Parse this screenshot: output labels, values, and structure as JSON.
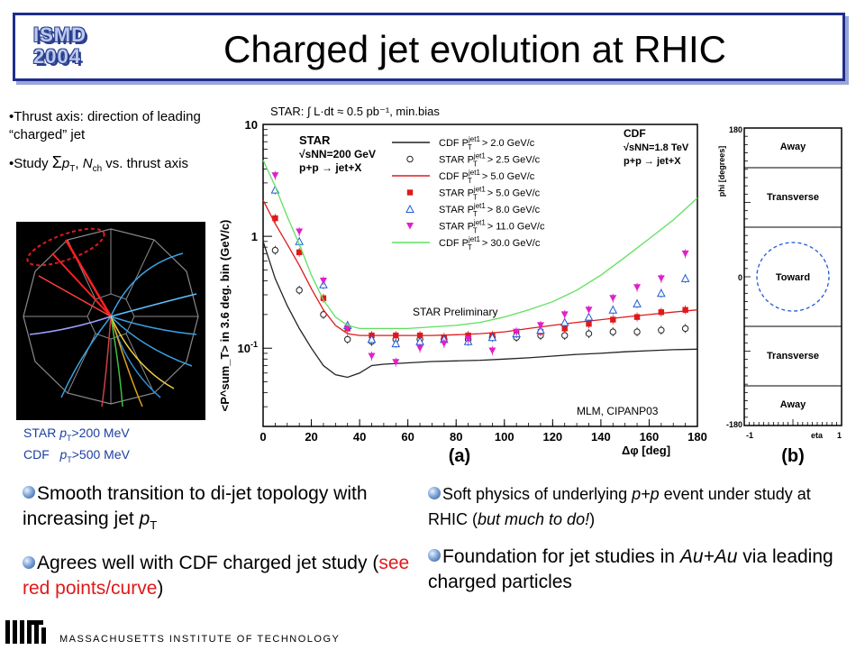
{
  "header": {
    "logo_line1": "ISMD",
    "logo_line2": "2004",
    "title": "Charged jet evolution at RHIC"
  },
  "left_bullets": {
    "b1": "•Thrust axis: direction of leading “charged” jet",
    "b2_pre": "•Study ",
    "b2_sum": "Σ",
    "b2_pt": "p",
    "b2_ptsub": "T",
    "b2_comma": ", ",
    "b2_n": "N",
    "b2_nsub": "ch",
    "b2_post": " vs. thrust axis"
  },
  "event_legend": {
    "line1_pre": "STAR ",
    "line1_p": "p",
    "line1_sub": "T",
    "line1_post": ">200 MeV",
    "line2_pre": "CDF   ",
    "line2_p": "p",
    "line2_sub": "T",
    "line2_post": ">500 MeV"
  },
  "chart_data": [
    {
      "type": "line",
      "panel_label": "(a)",
      "header_note": "STAR: ∫ L·dt ≈ 0.5 pb⁻¹, min.bias",
      "xlabel": "Δφ [deg]",
      "ylabel": "<P^sum_T> in 3.6 deg. bin (GeV/c)",
      "xlim": [
        0,
        180
      ],
      "ylim": [
        0.02,
        10
      ],
      "yscale": "log",
      "x_ticks": [
        0,
        20,
        40,
        60,
        80,
        100,
        120,
        140,
        160,
        180
      ],
      "y_tick_labels": [
        "10",
        "1",
        "10^-1"
      ],
      "annotation_star": [
        "STAR",
        "√sNN=200 GeV",
        "p+p → jet+X"
      ],
      "annotation_cdf": [
        "CDF",
        "√sNN=1.8 TeV",
        "p+p → jet+X"
      ],
      "annotation_prelim": "STAR Preliminary",
      "annotation_credit": "MLM, CIPANP03",
      "series": [
        {
          "name": "CDF P_T^jet1 > 2.0 GeV/c",
          "style": "line",
          "color": "#222222",
          "x": [
            0,
            5,
            10,
            15,
            20,
            25,
            30,
            35,
            40,
            45,
            50,
            60,
            70,
            80,
            90,
            100,
            110,
            120,
            130,
            140,
            150,
            160,
            170,
            180
          ],
          "y": [
            0.9,
            0.42,
            0.24,
            0.15,
            0.1,
            0.07,
            0.058,
            0.055,
            0.06,
            0.07,
            0.072,
            0.074,
            0.076,
            0.077,
            0.078,
            0.08,
            0.082,
            0.085,
            0.088,
            0.09,
            0.093,
            0.095,
            0.097,
            0.098
          ]
        },
        {
          "name": "STAR P_T^jet1 > 2.5 GeV/c",
          "style": "open-circle",
          "color": "#222222",
          "x": [
            5,
            15,
            25,
            35,
            45,
            55,
            65,
            75,
            85,
            95,
            105,
            115,
            125,
            135,
            145,
            155,
            165,
            175
          ],
          "y": [
            0.75,
            0.33,
            0.2,
            0.12,
            0.115,
            0.12,
            0.12,
            0.12,
            0.12,
            0.125,
            0.125,
            0.13,
            0.13,
            0.135,
            0.14,
            0.14,
            0.145,
            0.15
          ]
        },
        {
          "name": "CDF P_T^jet1 > 5.0 GeV/c",
          "style": "line",
          "color": "#e0191a",
          "x": [
            0,
            5,
            10,
            15,
            20,
            25,
            30,
            35,
            40,
            50,
            60,
            70,
            80,
            90,
            100,
            110,
            120,
            130,
            140,
            150,
            160,
            170,
            180
          ],
          "y": [
            2.1,
            1.3,
            0.85,
            0.55,
            0.34,
            0.22,
            0.16,
            0.135,
            0.13,
            0.13,
            0.13,
            0.13,
            0.132,
            0.135,
            0.14,
            0.15,
            0.16,
            0.17,
            0.18,
            0.19,
            0.2,
            0.21,
            0.22
          ]
        },
        {
          "name": "STAR P_T^jet1 > 5.0 GeV/c",
          "style": "filled-square",
          "color": "#e0191a",
          "x": [
            5,
            15,
            25,
            35,
            45,
            55,
            65,
            75,
            85,
            95,
            105,
            115,
            125,
            135,
            145,
            155,
            165,
            175
          ],
          "y": [
            1.45,
            0.72,
            0.28,
            0.15,
            0.13,
            0.13,
            0.13,
            0.125,
            0.13,
            0.13,
            0.135,
            0.14,
            0.15,
            0.165,
            0.18,
            0.19,
            0.21,
            0.22
          ]
        },
        {
          "name": "STAR P_T^jet1 > 8.0 GeV/c",
          "style": "open-triangle",
          "color": "#1e5bd6",
          "x": [
            5,
            15,
            25,
            35,
            45,
            55,
            65,
            75,
            85,
            95,
            105,
            115,
            125,
            135,
            145,
            155,
            165,
            175
          ],
          "y": [
            2.6,
            0.9,
            0.37,
            0.16,
            0.12,
            0.11,
            0.115,
            0.12,
            0.115,
            0.125,
            0.135,
            0.145,
            0.17,
            0.19,
            0.22,
            0.25,
            0.31,
            0.42
          ]
        },
        {
          "name": "STAR P_T^jet1 > 11.0 GeV/c",
          "style": "filled-down-triangle",
          "color": "#e020c8",
          "x": [
            5,
            15,
            25,
            35,
            45,
            55,
            65,
            75,
            85,
            95,
            105,
            115,
            125,
            135,
            145,
            155,
            165,
            175
          ],
          "y": [
            3.5,
            1.1,
            0.4,
            0.15,
            0.085,
            0.075,
            0.1,
            0.11,
            0.12,
            0.095,
            0.14,
            0.16,
            0.2,
            0.22,
            0.28,
            0.35,
            0.42,
            0.7
          ]
        },
        {
          "name": "CDF P_T^jet1 > 30.0 GeV/c",
          "style": "line",
          "color": "#5fe05f",
          "x": [
            0,
            5,
            10,
            15,
            20,
            25,
            30,
            35,
            40,
            50,
            60,
            70,
            80,
            90,
            100,
            110,
            120,
            130,
            140,
            150,
            160,
            170,
            180
          ],
          "y": [
            4.8,
            2.8,
            1.5,
            0.85,
            0.45,
            0.27,
            0.19,
            0.16,
            0.15,
            0.15,
            0.15,
            0.155,
            0.16,
            0.17,
            0.19,
            0.22,
            0.26,
            0.33,
            0.45,
            0.65,
            0.95,
            1.4,
            2.2
          ]
        }
      ],
      "legend_entries": [
        {
          "label": "CDF P",
          "sup": "jet1",
          "sub": "T",
          "rest": " > 2.0 GeV/c"
        },
        {
          "label": "STAR P",
          "sup": "jet1",
          "sub": "T",
          "rest": " > 2.5 GeV/c"
        },
        {
          "label": "CDF P",
          "sup": "jet1",
          "sub": "T",
          "rest": " > 5.0 GeV/c"
        },
        {
          "label": "STAR P",
          "sup": "jet1",
          "sub": "T",
          "rest": " > 5.0 GeV/c"
        },
        {
          "label": "STAR P",
          "sup": "jet1",
          "sub": "T",
          "rest": " > 8.0 GeV/c"
        },
        {
          "label": "STAR P",
          "sup": "jet1",
          "sub": "T",
          "rest": " > 11.0 GeV/c"
        },
        {
          "label": "CDF P",
          "sup": "jet1",
          "sub": "T",
          "rest": " > 30.0 GeV/c"
        }
      ]
    },
    {
      "type": "diagram",
      "panel_label": "(b)",
      "ylabel": "phi [degrees]",
      "xlabel": "eta",
      "y_tick_labels": [
        "180",
        "0",
        "-180"
      ],
      "x_tick_labels": [
        "-1",
        "1"
      ],
      "regions": [
        "Away",
        "Transverse",
        "Toward",
        "Transverse",
        "Away"
      ]
    }
  ],
  "bottom_left": {
    "p1_pre": "Smooth transition to di-jet topology with increasing jet ",
    "p1_p": "p",
    "p1_sub": "T",
    "p2_pre": "Agrees well with CDF charged jet study (",
    "p2_red": "see red points/curve",
    "p2_post": ")"
  },
  "bottom_right": {
    "p1_pre": "Soft physics of underlying ",
    "p1_ital": "p+p",
    "p1_mid": " event under study at RHIC (",
    "p1_ital2": "but much to do!",
    "p1_post": ")",
    "p2_pre": "Foundation for jet studies in ",
    "p2_ital": "Au+Au",
    "p2_post": " via leading charged particles"
  },
  "footer": {
    "institution": "MASSACHUSETTS INSTITUTE OF TECHNOLOGY"
  }
}
